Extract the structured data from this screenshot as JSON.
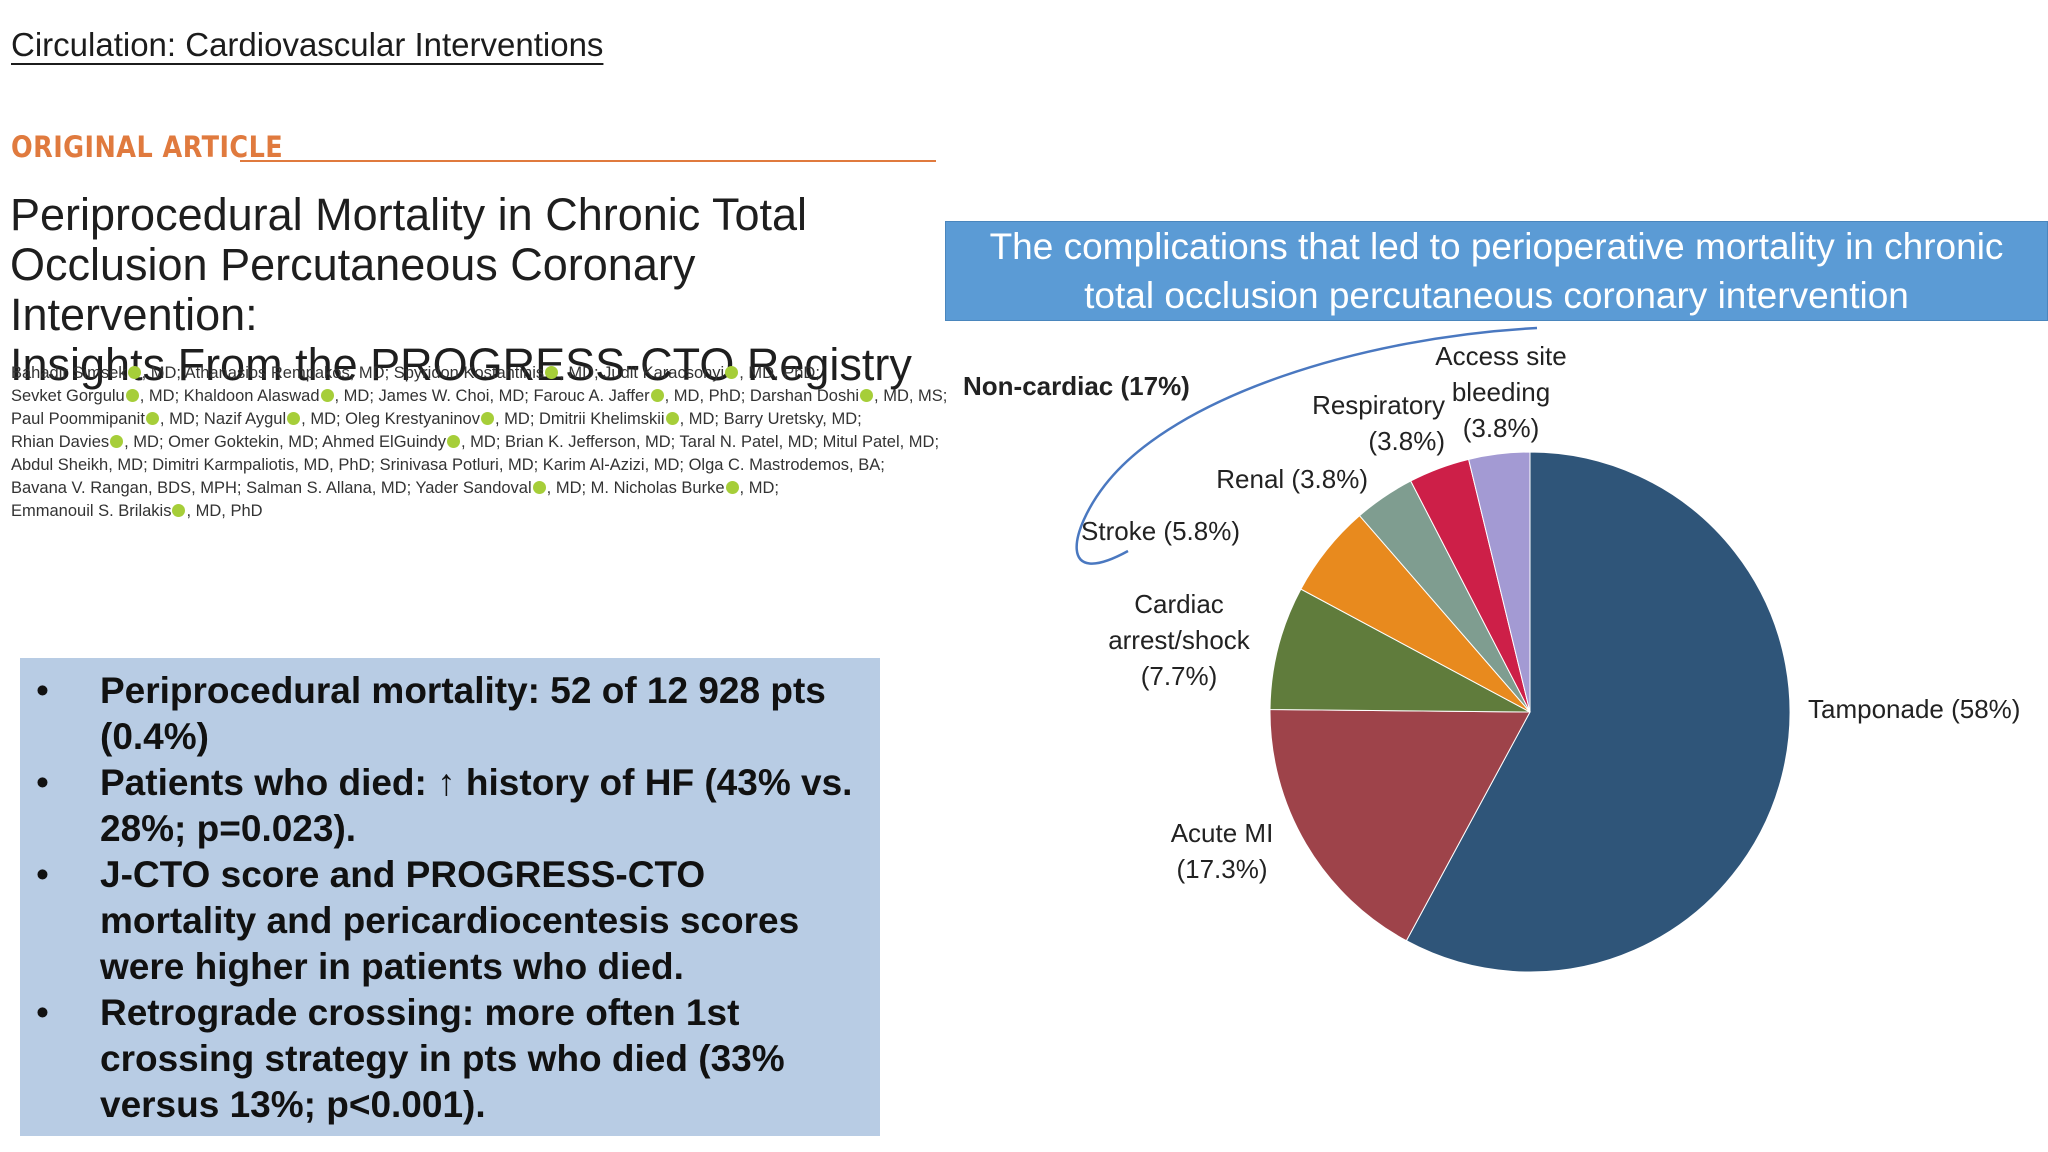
{
  "journal": "Circulation: Cardiovascular Interventions",
  "section_label": "ORIGINAL ARTICLE",
  "article": {
    "title_lines": [
      "Periprocedural Mortality in Chronic Total",
      "Occlusion Percutaneous Coronary Intervention:",
      "Insights From the PROGRESS-CTO Registry"
    ],
    "author_lines": [
      [
        "Bahadir Simsek",
        ", MD; Athanasios Rempakos, MD; Spyridon Kostantinis",
        ", MD; Judit Karacsonyi",
        ", MD, PhD;"
      ],
      [
        "Sevket Gorgulu",
        ", MD; Khaldoon Alaswad",
        ", MD; James W. Choi, MD; Farouc A. Jaffer",
        ", MD, PhD; Darshan Doshi",
        ", MD, MS;"
      ],
      [
        "Paul Poommipanit",
        ", MD; Nazif Aygul",
        ", MD; Oleg Krestyaninov",
        ", MD; Dmitrii Khelimskii",
        ", MD; Barry Uretsky, MD;"
      ],
      [
        "Rhian Davies",
        ", MD; Omer Goktekin, MD; Ahmed ElGuindy",
        ", MD; Brian K. Jefferson, MD; Taral N. Patel, MD; Mitul Patel, MD;"
      ],
      [
        "Abdul Sheikh, MD; Dimitri Karmpaliotis, MD, PhD; Srinivasa Potluri, MD; Karim Al-Azizi, MD; Olga C. Mastrodemos, BA;"
      ],
      [
        "Bavana V. Rangan, BDS, MPH; Salman S. Allana, MD; Yader Sandoval",
        ", MD; M. Nicholas Burke",
        ", MD;"
      ],
      [
        "Emmanouil S. Brilakis",
        ", MD, PhD"
      ]
    ]
  },
  "bullets": [
    {
      "marker": "•",
      "text": "Periprocedural mortality: 52 of 12 928 pts (0.4%)"
    },
    {
      "marker": "•",
      "text": "Patients who died: ↑ history of HF (43% vs. 28%; p=0.023)."
    },
    {
      "marker": "•",
      "text": "J-CTO score and PROGRESS-CTO mortality and pericardiocentesis scores were higher in patients who died."
    },
    {
      "marker": "•",
      "text": "Retrograde crossing: more often 1st crossing strategy in pts who died (33% versus 13%; p<0.001)."
    }
  ],
  "chart_data": {
    "type": "pie",
    "title": "The complications that led to perioperative mortality in chronic total occlusion percutaneous coronary intervention",
    "start_angle_deg": 0,
    "direction": "clockwise",
    "slices": [
      {
        "name": "Tamponade",
        "value": 58,
        "label_lines": [
          "Tamponade (58%)"
        ],
        "color": "#2f5579"
      },
      {
        "name": "Acute MI",
        "value": 17.3,
        "label_lines": [
          "Acute MI",
          "(17.3%)"
        ],
        "color": "#9e434a"
      },
      {
        "name": "Cardiac arrest/shock",
        "value": 7.7,
        "label_lines": [
          "Cardiac",
          "arrest/shock",
          "(7.7%)"
        ],
        "color": "#607c3c"
      },
      {
        "name": "Stroke",
        "value": 5.8,
        "label_lines": [
          "Stroke (5.8%)"
        ],
        "color": "#e88a1e"
      },
      {
        "name": "Renal",
        "value": 3.8,
        "label_lines": [
          "Renal (3.8%)"
        ],
        "color": "#7f9d90"
      },
      {
        "name": "Respiratory",
        "value": 3.8,
        "label_lines": [
          "Respiratory",
          "(3.8%)"
        ],
        "color": "#cd1f48"
      },
      {
        "name": "Access site bleeding",
        "value": 3.8,
        "label_lines": [
          "Access site",
          "bleeding",
          "(3.8%)"
        ],
        "color": "#a39ad3"
      }
    ],
    "group_annotation": {
      "label": "Non-cardiac (17%)",
      "value": 17
    }
  }
}
